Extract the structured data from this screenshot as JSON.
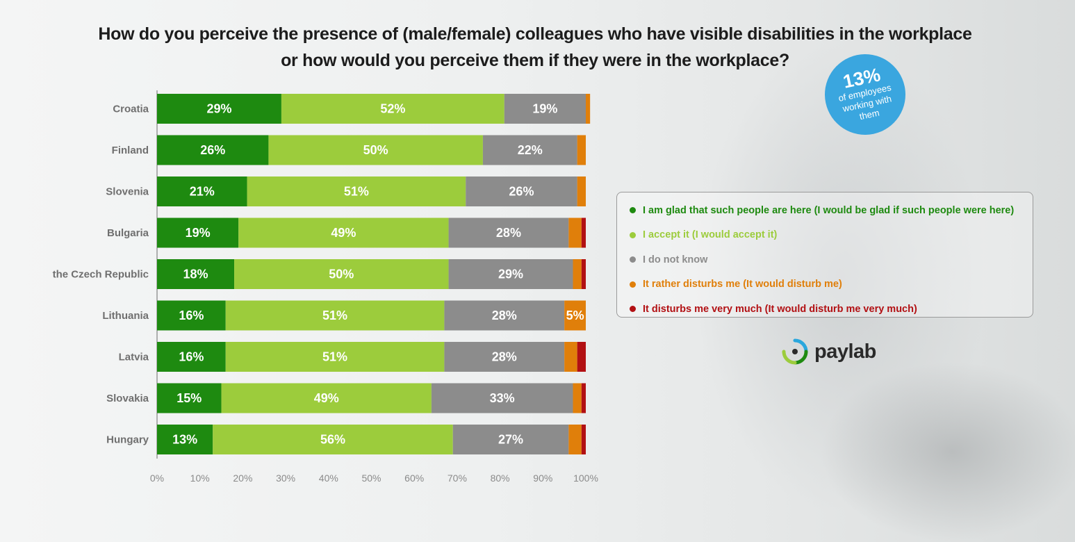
{
  "title": {
    "line1": "How do you perceive  the presence of (male/female) colleagues who have visible disabilities  in the workplace",
    "line2": "or how would you perceive them if they were in the workplace?"
  },
  "badge": {
    "value": "13%",
    "text": "of employees working with them"
  },
  "logo": {
    "name": "paylab"
  },
  "legend": [
    {
      "label": "I am glad that such people are here (I would be glad if such people were here)",
      "color": "#1e8a10"
    },
    {
      "label": "I accept it (I would accept it)",
      "color": "#9ccc3c"
    },
    {
      "label": "I do not know",
      "color": "#8c8c8c"
    },
    {
      "label": "It rather disturbs me (It would disturb me)",
      "color": "#e07f0a"
    },
    {
      "label": "It disturbs me very much (It would disturb me very much)",
      "color": "#b21013"
    }
  ],
  "chart_data": {
    "type": "bar",
    "orientation": "horizontal",
    "stacked": true,
    "title": "How do you perceive  the presence of (male/female) colleagues who have visible disabilities  in the workplace or how would you perceive them if they were in the workplace?",
    "categories": [
      "Croatia",
      "Finland",
      "Slovenia",
      "Bulgaria",
      "the Czech Republic",
      "Lithuania",
      "Latvia",
      "Slovakia",
      "Hungary"
    ],
    "xlim": [
      0,
      100
    ],
    "xticks": [
      "0%",
      "10%",
      "20%",
      "30%",
      "40%",
      "50%",
      "60%",
      "70%",
      "80%",
      "90%",
      "100%"
    ],
    "legend_position": "right",
    "grid": false,
    "series": [
      {
        "name": "I am glad that such people are here (I would be glad if such people were here)",
        "color": "#1e8a10",
        "values": [
          29,
          26,
          21,
          19,
          18,
          16,
          16,
          15,
          13
        ],
        "labels": [
          "29%",
          "26%",
          "21%",
          "19%",
          "18%",
          "16%",
          "16%",
          "15%",
          "13%"
        ]
      },
      {
        "name": "I accept it (I would accept it)",
        "color": "#9ccc3c",
        "values": [
          52,
          50,
          51,
          49,
          50,
          51,
          51,
          49,
          56
        ],
        "labels": [
          "52%",
          "50%",
          "51%",
          "49%",
          "50%",
          "51%",
          "51%",
          "49%",
          "56%"
        ]
      },
      {
        "name": "I do not know",
        "color": "#8c8c8c",
        "values": [
          19,
          22,
          26,
          28,
          29,
          28,
          28,
          33,
          27
        ],
        "labels": [
          "19%",
          "22%",
          "26%",
          "28%",
          "29%",
          "28%",
          "28%",
          "33%",
          "27%"
        ]
      },
      {
        "name": "It rather disturbs me (It would disturb me)",
        "color": "#e07f0a",
        "values": [
          1,
          2,
          2,
          3,
          2,
          5,
          3,
          2,
          3
        ],
        "labels": [
          "",
          "",
          "",
          "",
          "",
          "5%",
          "",
          "",
          ""
        ]
      },
      {
        "name": "It disturbs me very much (It would disturb me very much)",
        "color": "#b21013",
        "values": [
          0,
          0,
          0,
          1,
          1,
          0,
          2,
          1,
          1
        ],
        "labels": [
          "",
          "",
          "",
          "",
          "",
          "",
          "",
          "",
          ""
        ]
      }
    ]
  }
}
